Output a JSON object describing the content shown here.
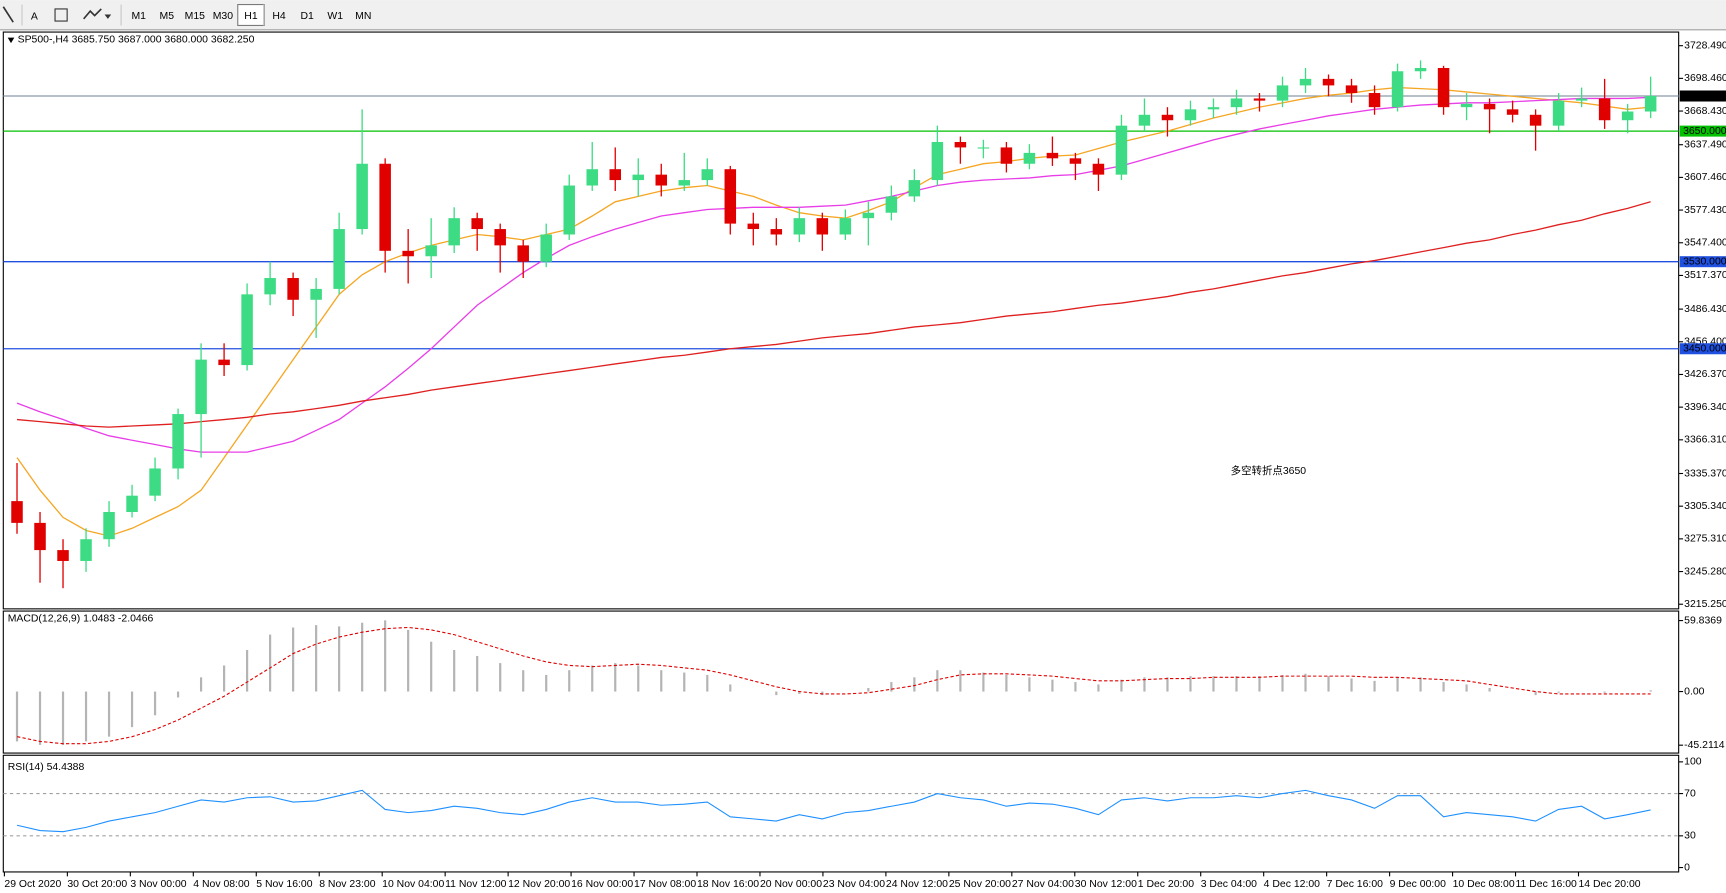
{
  "toolbar": {
    "text_tool": "A",
    "buttons": [
      {
        "label": "M1"
      },
      {
        "label": "M5"
      },
      {
        "label": "M15"
      },
      {
        "label": "M30"
      },
      {
        "label": "H1",
        "pressed": true
      },
      {
        "label": "H4"
      },
      {
        "label": "D1"
      },
      {
        "label": "W1"
      },
      {
        "label": "MN"
      }
    ]
  },
  "chart_data": [
    {
      "type": "candlestick",
      "title": "SP500-,H4  3685.750 3687.000 3680.000 3682.250",
      "up_color": "#3ddc84",
      "down_color": "#e00000",
      "open": [
        3310,
        3290,
        3265,
        3255,
        3275,
        3300,
        3315,
        3340,
        3390,
        3440,
        3435,
        3500,
        3515,
        3495,
        3505,
        3560,
        3620,
        3540,
        3535,
        3545,
        3570,
        3560,
        3545,
        3530,
        3555,
        3600,
        3615,
        3605,
        3610,
        3600,
        3605,
        3615,
        3565,
        3560,
        3555,
        3570,
        3555,
        3570,
        3575,
        3590,
        3605,
        3640,
        3635,
        3635,
        3620,
        3630,
        3625,
        3620,
        3610,
        3655,
        3665,
        3660,
        3670,
        3672,
        3680,
        3678,
        3692,
        3698,
        3692,
        3685,
        3672,
        3705,
        3708,
        3672,
        3675,
        3670,
        3665,
        3655,
        3678,
        3680,
        3660,
        3668
      ],
      "high": [
        3345,
        3300,
        3275,
        3285,
        3310,
        3325,
        3350,
        3395,
        3455,
        3455,
        3510,
        3530,
        3520,
        3515,
        3575,
        3670,
        3625,
        3560,
        3570,
        3580,
        3575,
        3565,
        3550,
        3565,
        3610,
        3640,
        3635,
        3625,
        3620,
        3630,
        3625,
        3618,
        3575,
        3570,
        3580,
        3575,
        3578,
        3585,
        3600,
        3615,
        3655,
        3645,
        3642,
        3640,
        3638,
        3645,
        3630,
        3625,
        3665,
        3680,
        3672,
        3678,
        3680,
        3688,
        3685,
        3700,
        3708,
        3702,
        3698,
        3692,
        3712,
        3715,
        3710,
        3685,
        3680,
        3678,
        3670,
        3685,
        3690,
        3698,
        3675,
        3700
      ],
      "low": [
        3280,
        3235,
        3230,
        3245,
        3268,
        3295,
        3310,
        3330,
        3350,
        3425,
        3430,
        3490,
        3480,
        3460,
        3500,
        3555,
        3520,
        3510,
        3515,
        3538,
        3540,
        3520,
        3515,
        3525,
        3550,
        3595,
        3595,
        3590,
        3590,
        3595,
        3600,
        3555,
        3545,
        3545,
        3548,
        3540,
        3550,
        3545,
        3568,
        3585,
        3600,
        3620,
        3625,
        3612,
        3615,
        3618,
        3605,
        3595,
        3605,
        3650,
        3645,
        3655,
        3662,
        3665,
        3668,
        3672,
        3685,
        3682,
        3676,
        3665,
        3668,
        3698,
        3665,
        3660,
        3648,
        3658,
        3632,
        3650,
        3672,
        3652,
        3648,
        3662
      ],
      "close": [
        3290,
        3265,
        3255,
        3275,
        3300,
        3315,
        3340,
        3390,
        3440,
        3435,
        3500,
        3515,
        3495,
        3505,
        3560,
        3620,
        3540,
        3535,
        3545,
        3570,
        3560,
        3545,
        3530,
        3555,
        3600,
        3615,
        3605,
        3610,
        3600,
        3605,
        3615,
        3565,
        3560,
        3555,
        3570,
        3555,
        3570,
        3575,
        3590,
        3605,
        3640,
        3635,
        3635,
        3620,
        3630,
        3625,
        3620,
        3610,
        3655,
        3665,
        3660,
        3670,
        3672,
        3680,
        3678,
        3692,
        3698,
        3692,
        3685,
        3672,
        3705,
        3708,
        3672,
        3675,
        3670,
        3665,
        3655,
        3678,
        3680,
        3660,
        3668,
        3682.25
      ],
      "series": [
        {
          "color": "#f5a623",
          "values": [
            3350,
            3320,
            3295,
            3283,
            3278,
            3285,
            3295,
            3305,
            3320,
            3350,
            3380,
            3410,
            3440,
            3470,
            3500,
            3518,
            3530,
            3538,
            3545,
            3550,
            3555,
            3553,
            3550,
            3555,
            3560,
            3572,
            3585,
            3590,
            3595,
            3598,
            3600,
            3595,
            3590,
            3582,
            3575,
            3572,
            3570,
            3577,
            3585,
            3598,
            3610,
            3615,
            3620,
            3622,
            3625,
            3627,
            3628,
            3634,
            3640,
            3645,
            3650,
            3656,
            3662,
            3667,
            3672,
            3676,
            3680,
            3683,
            3685,
            3688,
            3690,
            3689,
            3688,
            3686,
            3684,
            3682,
            3680,
            3678,
            3676,
            3673,
            3670,
            3672
          ]
        },
        {
          "color": "#e83ee8",
          "values": [
            3400,
            3392,
            3385,
            3377,
            3370,
            3366,
            3362,
            3358,
            3355,
            3355,
            3355,
            3360,
            3365,
            3375,
            3385,
            3400,
            3415,
            3432,
            3450,
            3470,
            3490,
            3505,
            3520,
            3533,
            3545,
            3553,
            3560,
            3566,
            3572,
            3575,
            3578,
            3579,
            3580,
            3580,
            3580,
            3581,
            3582,
            3586,
            3590,
            3595,
            3600,
            3603,
            3605,
            3606,
            3607,
            3609,
            3610,
            3614,
            3618,
            3624,
            3630,
            3636,
            3642,
            3647,
            3652,
            3656,
            3660,
            3664,
            3667,
            3670,
            3672,
            3674,
            3675,
            3676,
            3676,
            3677,
            3678,
            3679,
            3680,
            3680,
            3680,
            3681
          ]
        },
        {
          "color": "#e02020",
          "values": [
            3385,
            3383,
            3381,
            3379,
            3378,
            3379,
            3380,
            3381,
            3383,
            3385,
            3387,
            3390,
            3392,
            3395,
            3398,
            3402,
            3405,
            3408,
            3412,
            3415,
            3418,
            3421,
            3424,
            3427,
            3430,
            3433,
            3436,
            3439,
            3442,
            3444,
            3447,
            3450,
            3452,
            3454,
            3457,
            3460,
            3462,
            3464,
            3467,
            3470,
            3472,
            3474,
            3477,
            3480,
            3482,
            3484,
            3487,
            3490,
            3492,
            3495,
            3498,
            3502,
            3505,
            3509,
            3513,
            3517,
            3520,
            3524,
            3528,
            3531,
            3535,
            3539,
            3543,
            3547,
            3550,
            3555,
            3559,
            3564,
            3568,
            3574,
            3579,
            3585
          ]
        }
      ],
      "levels": [
        {
          "value": 3682.25,
          "label": "3682.250",
          "color": "#8c9aa6",
          "label_bg": "#000000"
        },
        {
          "value": 3650,
          "label": "3650.000",
          "color": "#00c000",
          "label_bg": "#00c000"
        },
        {
          "value": 3530,
          "label": "3530.000",
          "color": "#2050e0",
          "label_bg": "#2050e0"
        },
        {
          "value": 3450,
          "label": "3450.000",
          "color": "#2050e0",
          "label_bg": "#2050e0"
        }
      ],
      "annotation": {
        "text": "多空转折点3650",
        "color": "#e02020"
      },
      "ylim": [
        3212,
        3740
      ],
      "yticks": [
        {
          "value": 3728.49,
          "label": "3728.490"
        },
        {
          "value": 3698.46,
          "label": "3698.460"
        },
        {
          "value": 3668.43,
          "label": "3668.430"
        },
        {
          "value": 3637.49,
          "label": "3637.490"
        },
        {
          "value": 3607.46,
          "label": "3607.460"
        },
        {
          "value": 3577.43,
          "label": "3577.430"
        },
        {
          "value": 3547.4,
          "label": "3547.400"
        },
        {
          "value": 3517.37,
          "label": "3517.370"
        },
        {
          "value": 3486.43,
          "label": "3486.430"
        },
        {
          "value": 3456.4,
          "label": "3456.400"
        },
        {
          "value": 3426.37,
          "label": "3426.370"
        },
        {
          "value": 3396.34,
          "label": "3396.340"
        },
        {
          "value": 3366.31,
          "label": "3366.310"
        },
        {
          "value": 3335.37,
          "label": "3335.370"
        },
        {
          "value": 3305.34,
          "label": "3305.340"
        },
        {
          "value": 3275.31,
          "label": "3275.310"
        },
        {
          "value": 3245.28,
          "label": "3245.280"
        },
        {
          "value": 3215.25,
          "label": "3215.250"
        }
      ],
      "x_labels": [
        "29 Oct 2020",
        "30 Oct 20:00",
        "3 Nov 00:00",
        "4 Nov 08:00",
        "5 Nov 16:00",
        "8 Nov 23:00",
        "10 Nov 04:00",
        "11 Nov 12:00",
        "12 Nov 20:00",
        "16 Nov 00:00",
        "17 Nov 08:00",
        "18 Nov 16:00",
        "20 Nov 00:00",
        "23 Nov 04:00",
        "24 Nov 12:00",
        "25 Nov 20:00",
        "27 Nov 04:00",
        "30 Nov 12:00",
        "1 Dec 20:00",
        "3 Dec 04:00",
        "4 Dec 12:00",
        "7 Dec 16:00",
        "9 Dec 00:00",
        "10 Dec 08:00",
        "11 Dec 16:00",
        "14 Dec 20:00"
      ]
    },
    {
      "type": "macd",
      "title": "MACD(12,26,9) 1.0483 -2.0466",
      "histogram_color": "#b4b4b4",
      "histogram": [
        -42,
        -45,
        -45,
        -42,
        -38,
        -30,
        -20,
        -5,
        12,
        22,
        35,
        48,
        54,
        56,
        55,
        58,
        60,
        52,
        42,
        35,
        30,
        24,
        18,
        14,
        18,
        22,
        24,
        22,
        18,
        16,
        14,
        6,
        0,
        -3,
        -2,
        -3,
        0,
        3,
        8,
        12,
        18,
        18,
        16,
        14,
        12,
        10,
        8,
        6,
        10,
        12,
        12,
        13,
        13,
        13,
        13,
        14,
        15,
        13,
        11,
        9,
        12,
        12,
        8,
        6,
        3,
        0,
        -3,
        -1,
        0,
        -1,
        0,
        1.0483
      ],
      "signal_color": "#e00000",
      "signal": [
        -38,
        -42,
        -44,
        -44,
        -42,
        -38,
        -32,
        -24,
        -14,
        -4,
        8,
        20,
        32,
        40,
        46,
        50,
        53,
        54,
        52,
        48,
        42,
        36,
        30,
        25,
        22,
        21,
        22,
        23,
        22,
        20,
        18,
        14,
        9,
        4,
        0,
        -2,
        -2,
        -1,
        2,
        5,
        10,
        14,
        15,
        15,
        14,
        13,
        11,
        9,
        9,
        10,
        11,
        11,
        12,
        12,
        12,
        13,
        13,
        13,
        13,
        12,
        12,
        11,
        10,
        9,
        6,
        3,
        0,
        -2,
        -2,
        -2,
        -2,
        -2.0466
      ],
      "ylim": [
        -50,
        66
      ],
      "yticks": [
        59.8369,
        {
          "value": 0,
          "label": "0.00"
        },
        -45.2114
      ]
    },
    {
      "type": "rsi",
      "title": "RSI(14) 54.4388",
      "color": "#1e90ff",
      "values": [
        40,
        35,
        34,
        38,
        44,
        48,
        52,
        58,
        64,
        62,
        66,
        67,
        62,
        63,
        68,
        73,
        55,
        52,
        54,
        58,
        56,
        52,
        50,
        55,
        62,
        66,
        62,
        62,
        59,
        60,
        62,
        48,
        46,
        44,
        50,
        46,
        52,
        54,
        58,
        62,
        70,
        66,
        64,
        58,
        61,
        60,
        56,
        50,
        64,
        66,
        63,
        66,
        66,
        68,
        66,
        70,
        73,
        68,
        64,
        56,
        68,
        68,
        48,
        52,
        50,
        48,
        44,
        55,
        58,
        46,
        50,
        54.4388
      ],
      "ylim": [
        0,
        100
      ],
      "yticks": [
        100,
        70,
        30,
        0
      ],
      "levels": [
        70,
        30
      ]
    }
  ]
}
